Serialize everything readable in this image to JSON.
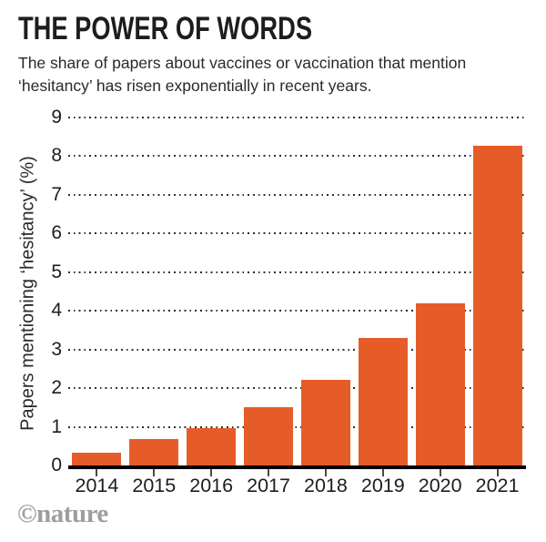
{
  "header": {
    "title": "THE POWER OF WORDS",
    "subtitle": "The share of papers about vaccines or vaccination that mention\n‘hesitancy’ has risen exponentially in recent years."
  },
  "footer": {
    "logo_text": "©nature"
  },
  "colors": {
    "bar": "#e65c28",
    "axis": "#000000",
    "gridline": "#2e2e2e",
    "tick": "#4a4a4a",
    "text": "#1d1d1b",
    "logo_gray": "#9e9e9e"
  },
  "chart_data": {
    "type": "bar",
    "title": "THE POWER OF WORDS",
    "subtitle": "The share of papers about vaccines or vaccination that mention ‘hesitancy’ has risen exponentially in recent years.",
    "categories": [
      "2014",
      "2015",
      "2016",
      "2017",
      "2018",
      "2019",
      "2020",
      "2021"
    ],
    "values": [
      0.33,
      0.68,
      0.97,
      1.52,
      2.21,
      3.31,
      4.19,
      8.28
    ],
    "xlabel": "",
    "ylabel": "Papers mentioning ‘hesitancy’ (%)",
    "ylim": [
      0,
      9
    ],
    "yticks": [
      0,
      1,
      2,
      3,
      4,
      5,
      6,
      7,
      8,
      9
    ],
    "grid": "dotted horizontal",
    "legend": "none",
    "bar_color": "#e65c28"
  }
}
